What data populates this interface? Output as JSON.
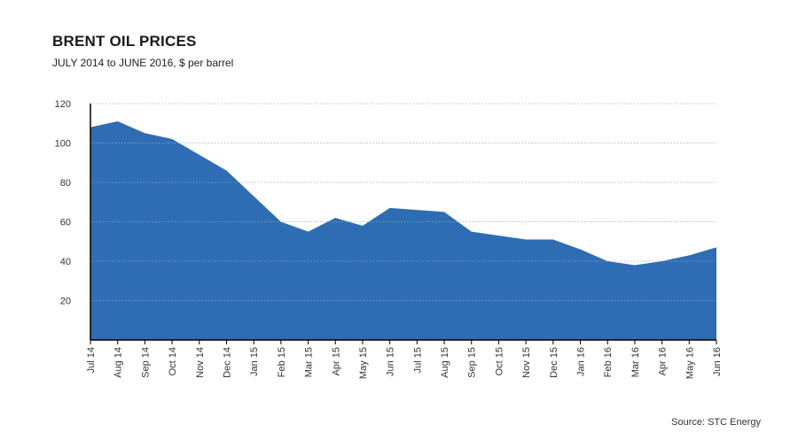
{
  "header": {
    "title": "BRENT OIL PRICES",
    "subtitle": "JULY 2014 to JUNE 2016, $ per barrel"
  },
  "footer": {
    "source": "Source: STC Energy"
  },
  "colors": {
    "area_fill": "#2e6db3",
    "gridline": "#bbbbbb",
    "axis": "#000000"
  },
  "chart_data": {
    "type": "area",
    "title": "BRENT OIL PRICES",
    "subtitle": "JULY 2014 to JUNE 2016, $ per barrel",
    "xlabel": "",
    "ylabel": "",
    "ylim": [
      0,
      120
    ],
    "yticks": [
      20,
      40,
      60,
      80,
      100,
      120
    ],
    "grid": true,
    "legend": "none",
    "categories": [
      "Jul 14",
      "Aug 14",
      "Sep 14",
      "Oct 14",
      "Nov 14",
      "Dec 14",
      "Jan 15",
      "Feb 15",
      "Mar 15",
      "Apr 15",
      "May 15",
      "Jun 15",
      "Jul 15",
      "Aug 15",
      "Sep 15",
      "Oct 15",
      "Nov 15",
      "Dec 15",
      "Jan 16",
      "Feb 16",
      "Mar 16",
      "Apr 16",
      "May 16",
      "Jun 16"
    ],
    "series": [
      {
        "values": [
          108,
          111,
          105,
          102,
          94,
          86,
          73,
          60,
          55,
          62,
          58,
          67,
          66,
          65,
          55,
          53,
          51,
          51,
          46,
          40,
          38,
          40,
          43,
          47
        ]
      }
    ]
  }
}
